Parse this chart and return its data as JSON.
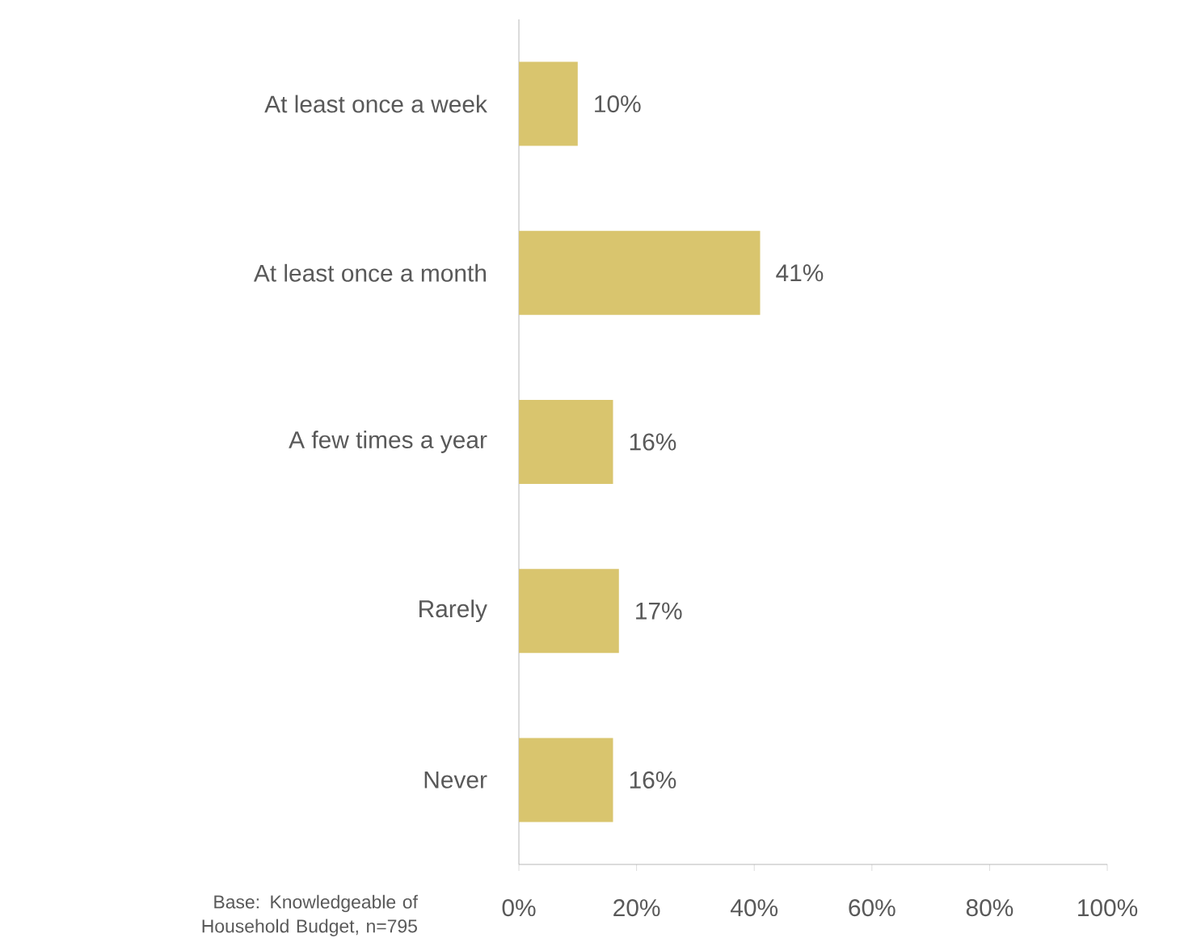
{
  "chart_data": {
    "type": "bar",
    "orientation": "horizontal",
    "categories": [
      "At least once a week",
      "At least once a month",
      "A few times a year",
      "Rarely",
      "Never"
    ],
    "values": [
      10,
      41,
      16,
      17,
      16
    ],
    "value_labels": [
      "10%",
      "41%",
      "16%",
      "17%",
      "16%"
    ],
    "color": "#d9c56e",
    "xlim": [
      0,
      100
    ],
    "xticks": [
      {
        "value": 0,
        "label": "0%"
      },
      {
        "value": 20,
        "label": "20%"
      },
      {
        "value": 40,
        "label": "40%"
      },
      {
        "value": 60,
        "label": "60%"
      },
      {
        "value": 80,
        "label": "80%"
      },
      {
        "value": 100,
        "label": "100%"
      }
    ],
    "grid": false,
    "annotations": [
      "Base: Knowledgeable of Household Budget, n=795"
    ]
  }
}
